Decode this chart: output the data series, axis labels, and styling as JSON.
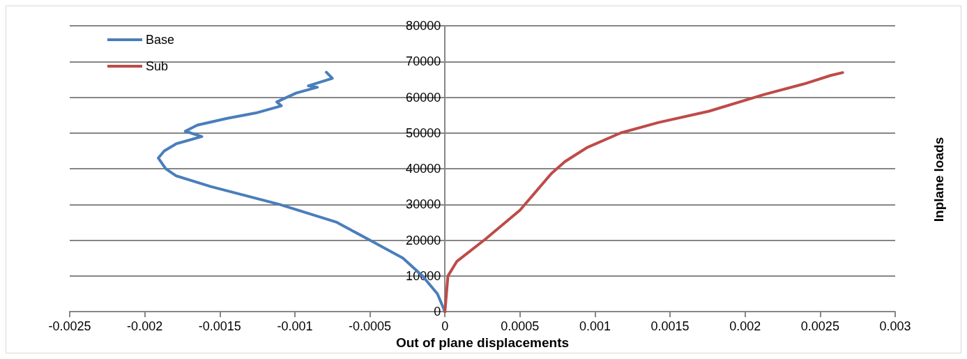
{
  "chart_data": {
    "type": "line",
    "xlabel": "Out of plane displacements",
    "ylabel": "Inplane loads",
    "xlim": [
      -0.0025,
      0.003
    ],
    "xticks": [
      -0.0025,
      -0.002,
      -0.0015,
      -0.001,
      -0.0005,
      0,
      0.0005,
      0.001,
      0.0015,
      0.002,
      0.0025,
      0.003
    ],
    "ylim": [
      0,
      80000
    ],
    "yticks": [
      0,
      10000,
      20000,
      30000,
      40000,
      50000,
      60000,
      70000,
      80000
    ],
    "grid": "y",
    "legend": "top left",
    "marker": "none",
    "line_style": "solid",
    "series": [
      {
        "name": "Base",
        "color": "#4a7ebb",
        "x": [
          0,
          -5e-05,
          -0.00015,
          -0.00028,
          -0.0005,
          -0.00072,
          -0.0011,
          -0.00156,
          -0.00179,
          -0.00186,
          -0.00191,
          -0.00187,
          -0.00179,
          -0.00162,
          -0.00173,
          -0.00165,
          -0.00145,
          -0.00126,
          -0.00109,
          -0.00112,
          -0.00099,
          -0.00085,
          -0.00091,
          -0.00075,
          -0.00079
        ],
        "values": [
          0,
          5000,
          10000,
          15000,
          20000,
          25000,
          30000,
          35000,
          38000,
          40000,
          43000,
          45000,
          47000,
          49000,
          50500,
          52200,
          54100,
          55600,
          57600,
          58700,
          61200,
          62800,
          63200,
          65300,
          67000
        ]
      },
      {
        "name": "Sub",
        "color": "#be4b48",
        "x": [
          0,
          2e-05,
          8e-05,
          0.00027,
          0.0005,
          0.00071,
          0.0008,
          0.00095,
          0.00117,
          0.00142,
          0.00176,
          0.00213,
          0.00239,
          0.00257,
          0.00265
        ],
        "values": [
          0,
          10000,
          14100,
          20300,
          28400,
          38700,
          42000,
          46000,
          50000,
          52900,
          56100,
          60800,
          63700,
          66100,
          66900
        ]
      }
    ]
  }
}
